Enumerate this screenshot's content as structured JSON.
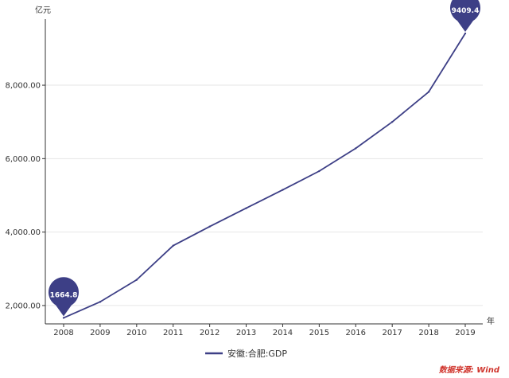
{
  "chart_data": {
    "type": "line",
    "y_unit": "亿元",
    "x_unit": "年",
    "x": [
      "2008",
      "2009",
      "2010",
      "2011",
      "2012",
      "2013",
      "2014",
      "2015",
      "2016",
      "2017",
      "2018",
      "2019"
    ],
    "series": [
      {
        "name": "安徽:合肥:GDP",
        "color": "#3d3f86",
        "values": [
          1664.8,
          2100,
          2700,
          3630,
          4150,
          4650,
          5150,
          5660,
          6280,
          7000,
          7820,
          9409.4
        ]
      }
    ],
    "ylim": [
      1500,
      9800
    ],
    "y_ticks": [
      2000,
      4000,
      6000,
      8000
    ],
    "y_tick_labels": [
      "2,000.00",
      "4,000.00",
      "6,000.00",
      "8,000.00"
    ],
    "annotations": [
      {
        "category": "2008",
        "label": "1664.8"
      },
      {
        "category": "2019",
        "label": "9409.4"
      }
    ],
    "grid": true,
    "legend": "bottom-center"
  },
  "source": "数据来源: Wind",
  "colors": {
    "line": "#3d3f86",
    "grid": "#e6e6e6",
    "axis": "#333333",
    "source": "#d0342c"
  }
}
